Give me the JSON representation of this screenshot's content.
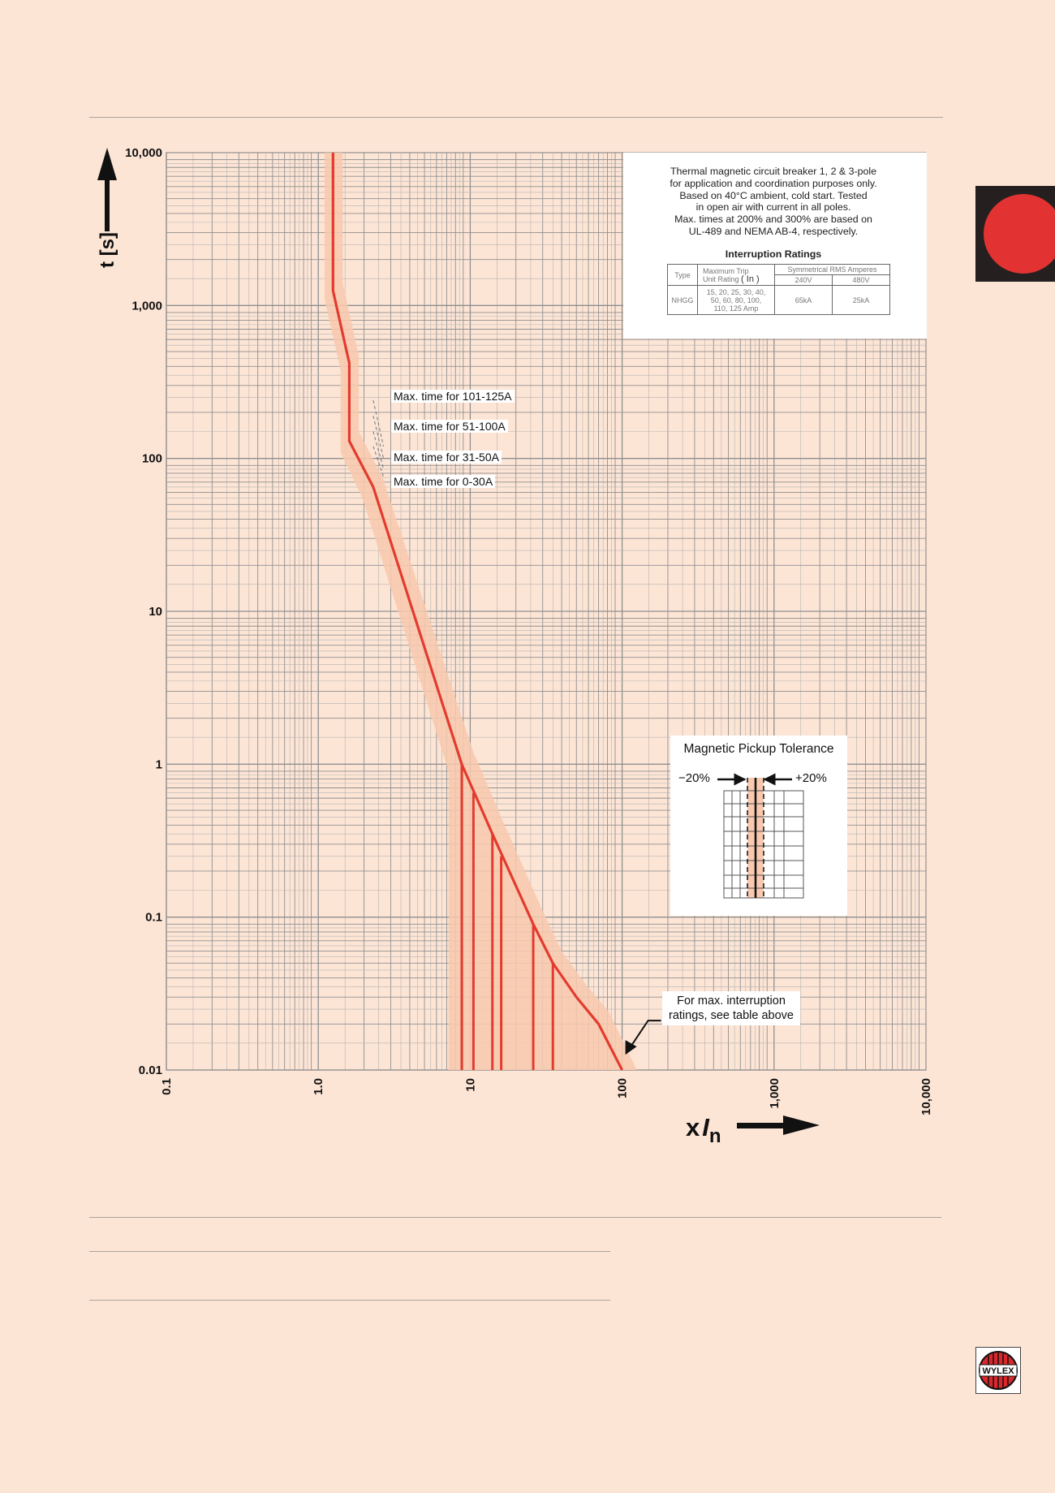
{
  "colors": {
    "page_background": "#fde5d6",
    "curve": "#e33b2e",
    "tolerance_band": "#f8c9ae",
    "grid": "#8f8f8f",
    "accent_tab": "#e33232"
  },
  "chart_data": {
    "type": "line",
    "x_scale": "log",
    "y_scale": "log",
    "xlim": [
      0.1,
      10000
    ],
    "ylim": [
      0.01,
      10000
    ],
    "grid": true,
    "x_tick_labels": [
      "0.1",
      "1.0",
      "10",
      "100",
      "1,000",
      "10,000"
    ],
    "y_tick_labels": [
      "10,000",
      "1,000",
      "100",
      "10",
      "1",
      "0.1",
      "0.01"
    ],
    "ylabel": "t [s]",
    "xlabel_main": "x",
    "xlabel_slash": "I",
    "xlabel_sub": "n",
    "series": [
      {
        "x": [
          1.25,
          1.25,
          1.6,
          1.6,
          2.3,
          8.8,
          14,
          26,
          35,
          50,
          70,
          100
        ],
        "y": [
          10000,
          1250,
          420,
          130,
          65,
          1,
          0.35,
          0.09,
          0.05,
          0.03,
          0.02,
          0.01
        ]
      }
    ],
    "tolerance_band": {
      "left_x": [
        1.1,
        1.1,
        1.4,
        1.4,
        1.95,
        7.2,
        7.2
      ],
      "left_y": [
        10000,
        1100,
        380,
        110,
        55,
        0.9,
        0.01
      ],
      "right_x": [
        1.45,
        1.45,
        1.85,
        1.85,
        2.65,
        10.5,
        16.5,
        30,
        40,
        58,
        82,
        125
      ],
      "right_y": [
        10000,
        1400,
        470,
        150,
        75,
        1.2,
        0.42,
        0.11,
        0.06,
        0.036,
        0.024,
        0.01
      ]
    },
    "instantaneous_drops": [
      {
        "x": 8.8,
        "y_top": 1
      },
      {
        "x": 10.5,
        "y_top": 0.65
      },
      {
        "x": 14,
        "y_top": 0.35
      },
      {
        "x": 16,
        "y_top": 0.25
      },
      {
        "x": 26,
        "y_top": 0.09
      },
      {
        "x": 35,
        "y_top": 0.05
      }
    ],
    "annotations": [
      {
        "text": "Max. time for 101-125A",
        "x": 2.2,
        "y": 120
      },
      {
        "text": "Max. time for 51-100A",
        "x": 2.2,
        "y": 100
      },
      {
        "text": "Max. time for 31-50A",
        "x": 2.2,
        "y": 86
      },
      {
        "text": "Max. time for 0-30A",
        "x": 2.2,
        "y": 76
      }
    ]
  },
  "description": {
    "lines": [
      "Thermal magnetic circuit breaker 1, 2 & 3-pole",
      "for application and coordination purposes only.",
      "Based on  40°C ambient, cold start. Tested",
      "in open air with current in all poles.",
      "Max. times at 200% and 300% are based on",
      "UL-489 and NEMA AB-4, respectively."
    ]
  },
  "interruption": {
    "title": "Interruption Ratings",
    "col_type": "Type",
    "col_trip_line1": "Maximum Trip",
    "col_trip_line2": "Unit Rating",
    "col_trip_symbol": "( In )",
    "col_sym": "Symmetrical RMS Amperes",
    "col_240": "240V",
    "col_480": "480V",
    "row_type": "NHGG",
    "row_ratings_1": "15, 20, 25, 30, 40,",
    "row_ratings_2": "50, 60, 80, 100,",
    "row_ratings_3": "110, 125 Amp",
    "row_240": "65kA",
    "row_480": "25kA"
  },
  "labels": {
    "max_101_125": "Max. time for 101-125A",
    "max_51_100": "Max. time for 51-100A",
    "max_31_50": "Max. time for 31-50A",
    "max_0_30": "Max. time for 0-30A",
    "interruption_note_1": "For max. interruption",
    "interruption_note_2": "ratings, see table above"
  },
  "magnetic": {
    "title": "Magnetic Pickup Tolerance",
    "minus": "−20%",
    "plus": "+20%"
  },
  "logo": {
    "text": "WYLEX"
  }
}
